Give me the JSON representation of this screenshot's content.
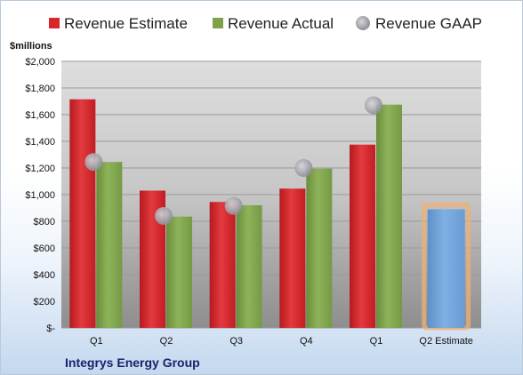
{
  "chart_data": {
    "type": "bar",
    "unit_label": "$millions",
    "company": "Integrys Energy Group",
    "categories": [
      "Q1",
      "Q2",
      "Q3",
      "Q4",
      "Q1",
      "Q2 Estimate"
    ],
    "series": [
      {
        "name": "Revenue Estimate",
        "color": "#d9262b",
        "values": [
          1715,
          1030,
          945,
          1045,
          1375,
          null
        ]
      },
      {
        "name": "Revenue Actual",
        "color": "#7ea24a",
        "values": [
          1245,
          835,
          920,
          1195,
          1675,
          null
        ]
      },
      {
        "name": "Revenue GAAP",
        "color": "#a9a9b0",
        "marker": "circle",
        "values": [
          1245,
          840,
          915,
          1200,
          1670,
          null
        ]
      },
      {
        "name": "Q2 Estimate",
        "color": "#6e9fd6",
        "highlight": "#f0b070",
        "values": [
          null,
          null,
          null,
          null,
          null,
          890
        ]
      }
    ],
    "ylim": [
      0,
      2000
    ],
    "yticks": [
      0,
      200,
      400,
      600,
      800,
      1000,
      1200,
      1400,
      1600,
      1800,
      2000
    ],
    "ytick_labels": [
      "$-",
      "$200",
      "$400",
      "$600",
      "$800",
      "$1,000",
      "$1,200",
      "$1,400",
      "$1,600",
      "$1,800",
      "$2,000"
    ],
    "grid": true,
    "legend_position": "top"
  }
}
